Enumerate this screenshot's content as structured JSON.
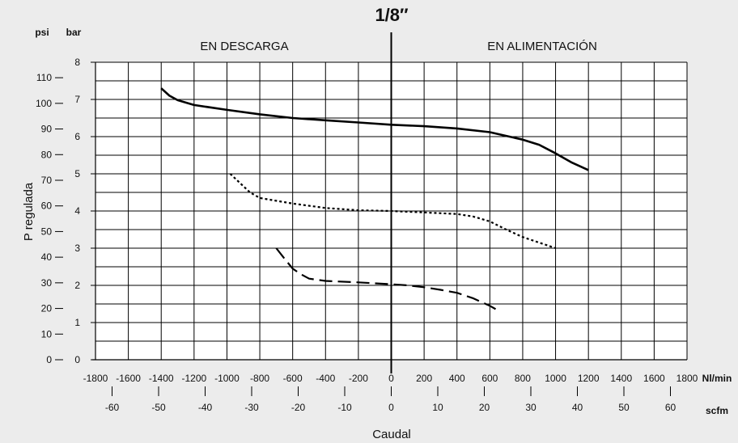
{
  "chart_data": {
    "type": "line",
    "title": "1/8″",
    "xlabel": "Caudal",
    "ylabel": "P regulada",
    "regions": {
      "left": "EN DESCARGA",
      "right": "EN ALIMENTACIÓN"
    },
    "x_primary": {
      "unit": "Nl/min",
      "range": [
        -1800,
        1800
      ],
      "ticks": [
        "-1800",
        "-1600",
        "-1400",
        "-1200",
        "-1000",
        "-800",
        "-600",
        "-400",
        "-200",
        "0",
        "200",
        "400",
        "600",
        "800",
        "1000",
        "1200",
        "1400",
        "1600",
        "1800"
      ]
    },
    "x_secondary": {
      "unit": "scfm",
      "ticks": [
        "-60",
        "-50",
        "-40",
        "-30",
        "-20",
        "-10",
        "0",
        "10",
        "20",
        "30",
        "40",
        "50",
        "60"
      ]
    },
    "y_primary": {
      "unit": "bar",
      "range": [
        0,
        8
      ],
      "ticks": [
        "0",
        "1",
        "2",
        "3",
        "4",
        "5",
        "6",
        "7",
        "8"
      ]
    },
    "y_secondary": {
      "unit": "psi",
      "ticks": [
        "0",
        "10",
        "20",
        "30",
        "40",
        "50",
        "60",
        "70",
        "80",
        "90",
        "100",
        "110"
      ]
    },
    "grid": true,
    "series": [
      {
        "style": "solid",
        "points": [
          [
            -1400,
            7.3
          ],
          [
            -1350,
            7.1
          ],
          [
            -1300,
            6.98
          ],
          [
            -1200,
            6.85
          ],
          [
            -1000,
            6.72
          ],
          [
            -800,
            6.6
          ],
          [
            -600,
            6.5
          ],
          [
            -400,
            6.44
          ],
          [
            -200,
            6.38
          ],
          [
            0,
            6.32
          ],
          [
            200,
            6.28
          ],
          [
            400,
            6.22
          ],
          [
            600,
            6.12
          ],
          [
            700,
            6.02
          ],
          [
            800,
            5.92
          ],
          [
            900,
            5.78
          ],
          [
            1000,
            5.55
          ],
          [
            1100,
            5.3
          ],
          [
            1200,
            5.1
          ]
        ]
      },
      {
        "style": "dotted",
        "points": [
          [
            -980,
            5.0
          ],
          [
            -920,
            4.75
          ],
          [
            -860,
            4.5
          ],
          [
            -800,
            4.35
          ],
          [
            -600,
            4.2
          ],
          [
            -400,
            4.08
          ],
          [
            -200,
            4.02
          ],
          [
            0,
            4.0
          ],
          [
            200,
            3.96
          ],
          [
            400,
            3.92
          ],
          [
            500,
            3.85
          ],
          [
            600,
            3.72
          ],
          [
            700,
            3.5
          ],
          [
            800,
            3.3
          ],
          [
            900,
            3.15
          ],
          [
            1000,
            3.0
          ]
        ]
      },
      {
        "style": "dashed",
        "points": [
          [
            -700,
            3.0
          ],
          [
            -650,
            2.72
          ],
          [
            -600,
            2.45
          ],
          [
            -550,
            2.3
          ],
          [
            -500,
            2.18
          ],
          [
            -400,
            2.12
          ],
          [
            -200,
            2.08
          ],
          [
            0,
            2.03
          ],
          [
            100,
            2.0
          ],
          [
            200,
            1.95
          ],
          [
            300,
            1.88
          ],
          [
            400,
            1.8
          ],
          [
            500,
            1.65
          ],
          [
            600,
            1.45
          ],
          [
            660,
            1.3
          ]
        ]
      }
    ]
  }
}
